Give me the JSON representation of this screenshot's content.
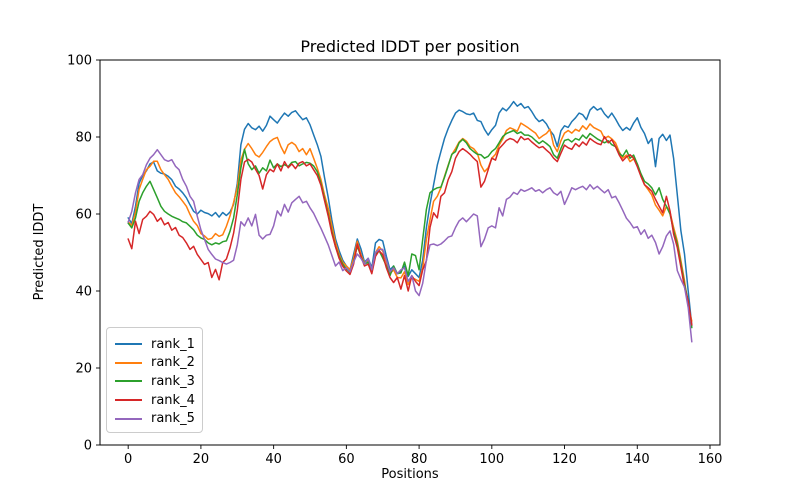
{
  "chart_data": {
    "type": "line",
    "title": "Predicted lDDT per position",
    "xlabel": "Positions",
    "ylabel": "Predicted lDDT",
    "xlim": [
      -7.75,
      162.75
    ],
    "ylim": [
      0,
      100
    ],
    "xticks": [
      0,
      20,
      40,
      60,
      80,
      100,
      120,
      140,
      160
    ],
    "yticks": [
      0,
      20,
      40,
      60,
      80,
      100
    ],
    "x_start": 0,
    "x_step": 1,
    "grid": false,
    "legend_position": "lower left",
    "axis_color": "#000000",
    "background_color": "#ffffff",
    "series": [
      {
        "name": "rank_1",
        "color": "#1f77b4",
        "values": [
          59.0,
          57.5,
          62.0,
          68.0,
          70.0,
          71.2,
          73.0,
          73.5,
          71.2,
          70.6,
          70.4,
          69.8,
          68.9,
          67.2,
          66.5,
          65.5,
          64.2,
          62.4,
          60.7,
          60.0,
          61.0,
          60.4,
          60.1,
          59.5,
          60.4,
          59.2,
          60.4,
          59.6,
          60.5,
          62.5,
          68.0,
          78.0,
          82.0,
          83.5,
          82.4,
          81.9,
          82.8,
          81.5,
          83.0,
          85.4,
          84.5,
          83.6,
          85.0,
          86.2,
          85.4,
          86.4,
          86.8,
          85.6,
          84.5,
          85.0,
          83.2,
          80.6,
          78.0,
          75.0,
          69.5,
          64.3,
          58.5,
          53.5,
          50.5,
          48.0,
          46.5,
          45.5,
          49.5,
          53.5,
          51.0,
          47.5,
          48.5,
          46.0,
          52.5,
          53.4,
          53.0,
          49.0,
          45.5,
          46.5,
          44.5,
          45.0,
          46.5,
          43.8,
          45.5,
          44.5,
          43.5,
          48.0,
          56.5,
          62.5,
          67.6,
          72.7,
          76.2,
          79.6,
          82.2,
          84.3,
          86.2,
          87.0,
          86.6,
          86.0,
          85.8,
          86.2,
          84.3,
          84.0,
          82.0,
          80.5,
          81.9,
          83.0,
          86.2,
          87.5,
          86.8,
          87.9,
          89.2,
          88.0,
          88.7,
          87.5,
          87.9,
          86.6,
          85.0,
          84.0,
          84.5,
          83.4,
          81.7,
          80.5,
          77.5,
          81.6,
          82.9,
          82.5,
          84.0,
          85.0,
          86.2,
          85.8,
          84.5,
          87.0,
          87.9,
          87.0,
          87.5,
          86.0,
          85.0,
          86.2,
          84.7,
          83.0,
          81.7,
          82.5,
          81.8,
          83.6,
          85.0,
          82.5,
          80.9,
          78.3,
          79.6,
          72.3,
          79.6,
          80.7,
          79.1,
          80.5,
          74.5,
          65.0,
          55.6,
          49.6,
          40.0,
          31.0
        ]
      },
      {
        "name": "rank_2",
        "color": "#ff7f0e",
        "values": [
          58.0,
          57.0,
          60.5,
          66.4,
          69.0,
          71.5,
          72.4,
          73.7,
          73.7,
          71.5,
          70.2,
          69.0,
          67.2,
          65.5,
          64.5,
          63.3,
          62.0,
          59.9,
          58.1,
          57.0,
          54.9,
          54.3,
          53.4,
          53.7,
          54.9,
          54.2,
          54.6,
          56.8,
          59.5,
          63.0,
          67.0,
          74.0,
          76.8,
          78.3,
          77.0,
          75.4,
          74.8,
          76.0,
          77.5,
          78.8,
          79.5,
          79.9,
          77.5,
          75.7,
          78.0,
          78.6,
          77.9,
          76.2,
          77.0,
          75.4,
          77.0,
          74.5,
          71.9,
          69.0,
          65.0,
          61.5,
          57.0,
          52.5,
          49.5,
          47.5,
          46.5,
          45.5,
          48.5,
          52.9,
          49.5,
          47.3,
          47.8,
          45.5,
          50.0,
          51.5,
          50.4,
          47.5,
          44.5,
          45.5,
          43.5,
          43.4,
          45.0,
          41.7,
          43.5,
          43.0,
          42.5,
          46.0,
          53.4,
          58.5,
          63.3,
          64.6,
          66.8,
          69.8,
          72.7,
          75.4,
          77.0,
          78.7,
          79.6,
          78.9,
          77.5,
          77.0,
          75.8,
          72.7,
          71.0,
          72.0,
          74.5,
          75.5,
          77.9,
          79.5,
          81.7,
          82.4,
          82.0,
          81.5,
          83.6,
          83.0,
          82.4,
          81.7,
          81.0,
          79.6,
          80.3,
          80.9,
          82.0,
          77.9,
          76.2,
          79.0,
          81.0,
          81.7,
          81.0,
          82.0,
          81.5,
          82.9,
          82.0,
          83.4,
          82.5,
          82.0,
          81.5,
          79.6,
          80.2,
          79.5,
          78.5,
          76.2,
          74.5,
          75.3,
          73.6,
          74.3,
          73.0,
          70.2,
          67.6,
          66.3,
          64.9,
          62.3,
          61.0,
          59.5,
          62.0,
          60.5,
          56.5,
          53.0,
          47.9,
          42.7,
          36.0,
          32.2
        ]
      },
      {
        "name": "rank_3",
        "color": "#2ca02c",
        "values": [
          57.6,
          56.4,
          59.0,
          63.3,
          65.5,
          67.2,
          68.5,
          66.4,
          64.2,
          62.0,
          60.7,
          60.0,
          59.4,
          59.0,
          58.6,
          58.0,
          57.7,
          56.8,
          55.9,
          54.5,
          53.8,
          53.4,
          52.5,
          52.0,
          52.5,
          52.2,
          52.8,
          53.0,
          55.5,
          59.0,
          65.0,
          72.0,
          76.8,
          73.0,
          71.5,
          72.5,
          70.6,
          72.0,
          71.2,
          74.0,
          72.0,
          73.0,
          72.3,
          72.8,
          72.3,
          73.4,
          73.6,
          72.5,
          73.0,
          73.4,
          73.2,
          72.5,
          71.0,
          68.0,
          64.0,
          60.0,
          55.5,
          51.5,
          49.0,
          47.0,
          45.8,
          44.8,
          47.5,
          51.7,
          49.0,
          47.0,
          47.5,
          45.0,
          49.5,
          50.5,
          48.6,
          46.5,
          44.0,
          46.5,
          44.5,
          44.7,
          47.5,
          44.0,
          49.6,
          49.2,
          45.5,
          53.4,
          61.2,
          65.5,
          66.3,
          66.8,
          67.0,
          69.5,
          72.5,
          75.5,
          76.2,
          78.5,
          79.4,
          78.5,
          77.0,
          76.2,
          75.5,
          75.4,
          74.5,
          75.0,
          76.2,
          77.0,
          78.5,
          80.1,
          80.9,
          81.3,
          81.7,
          80.9,
          81.3,
          80.5,
          80.5,
          80.0,
          79.1,
          78.3,
          79.0,
          78.3,
          77.5,
          75.4,
          74.5,
          77.0,
          79.1,
          79.4,
          78.7,
          79.6,
          79.2,
          80.5,
          79.6,
          80.9,
          80.2,
          79.5,
          79.0,
          78.5,
          79.0,
          78.0,
          77.5,
          75.8,
          75.0,
          76.6,
          74.5,
          75.3,
          73.0,
          70.5,
          68.5,
          67.8,
          66.8,
          65.0,
          66.8,
          63.8,
          62.0,
          60.0,
          55.6,
          52.2,
          47.0,
          41.8,
          37.4,
          30.5
        ]
      },
      {
        "name": "rank_4",
        "color": "#d62728",
        "values": [
          53.5,
          51.0,
          58.1,
          54.9,
          58.6,
          59.4,
          60.7,
          59.9,
          58.1,
          59.0,
          57.2,
          57.8,
          55.8,
          56.5,
          54.5,
          53.9,
          52.5,
          50.8,
          51.6,
          49.5,
          48.2,
          46.9,
          47.4,
          43.5,
          45.6,
          42.9,
          47.4,
          48.3,
          51.2,
          55.0,
          61.0,
          69.0,
          73.5,
          74.2,
          73.5,
          71.6,
          70.0,
          66.5,
          70.2,
          71.6,
          71.0,
          73.0,
          71.2,
          73.6,
          72.0,
          73.0,
          71.8,
          73.2,
          73.6,
          72.5,
          73.0,
          71.5,
          70.0,
          67.5,
          63.5,
          59.5,
          55.0,
          51.5,
          48.5,
          46.5,
          45.2,
          44.3,
          47.0,
          52.2,
          49.0,
          46.5,
          47.0,
          44.5,
          49.0,
          50.5,
          49.4,
          46.0,
          43.5,
          42.2,
          43.5,
          40.5,
          44.0,
          40.0,
          44.0,
          42.5,
          41.4,
          45.5,
          47.9,
          56.5,
          60.3,
          59.0,
          64.6,
          65.5,
          68.9,
          71.0,
          74.5,
          76.2,
          77.0,
          76.3,
          75.5,
          74.5,
          73.6,
          67.0,
          68.5,
          71.5,
          74.5,
          74.0,
          77.0,
          78.0,
          79.1,
          79.6,
          79.3,
          78.5,
          80.1,
          79.3,
          79.6,
          78.7,
          77.9,
          77.2,
          77.5,
          76.6,
          75.8,
          74.5,
          73.6,
          75.8,
          77.9,
          77.2,
          76.8,
          78.3,
          77.5,
          78.7,
          77.9,
          79.6,
          78.9,
          78.3,
          78.0,
          80.1,
          78.5,
          79.3,
          77.5,
          75.4,
          73.8,
          74.8,
          75.4,
          74.5,
          72.3,
          69.8,
          67.6,
          66.8,
          65.9,
          63.8,
          62.0,
          60.3,
          64.6,
          60.8,
          54.8,
          51.3,
          46.2,
          41.0,
          37.4,
          31.2
        ]
      },
      {
        "name": "rank_5",
        "color": "#9467bd",
        "values": [
          57.9,
          60.7,
          65.5,
          69.0,
          70.2,
          72.8,
          74.5,
          75.4,
          76.7,
          75.4,
          74.1,
          73.7,
          74.1,
          72.4,
          71.5,
          69.0,
          67.2,
          64.6,
          63.3,
          59.4,
          55.9,
          53.4,
          50.8,
          49.5,
          48.3,
          47.9,
          47.4,
          47.0,
          47.4,
          48.0,
          52.0,
          58.0,
          56.9,
          59.0,
          56.9,
          59.9,
          54.5,
          53.5,
          54.5,
          54.7,
          56.9,
          60.8,
          59.5,
          62.5,
          60.5,
          62.9,
          63.8,
          64.6,
          62.9,
          63.3,
          61.6,
          60.2,
          58.2,
          56.3,
          54.2,
          52.0,
          49.3,
          46.5,
          47.5,
          45.3,
          46.0,
          45.0,
          47.5,
          49.6,
          48.5,
          47.0,
          48.5,
          45.5,
          50.0,
          50.8,
          50.8,
          48.0,
          45.0,
          46.0,
          44.5,
          45.5,
          46.0,
          42.5,
          44.0,
          40.0,
          38.8,
          42.0,
          48.0,
          52.0,
          52.2,
          51.8,
          52.2,
          53.0,
          54.0,
          54.3,
          56.5,
          58.2,
          59.0,
          58.0,
          59.0,
          60.0,
          59.5,
          51.5,
          53.5,
          56.4,
          56.9,
          56.4,
          61.6,
          59.5,
          63.8,
          64.4,
          65.6,
          65.1,
          66.4,
          65.9,
          66.3,
          66.8,
          65.9,
          66.3,
          65.5,
          66.3,
          66.8,
          65.5,
          64.9,
          65.9,
          62.5,
          64.6,
          66.8,
          66.3,
          66.8,
          67.2,
          66.3,
          67.6,
          66.5,
          67.2,
          66.3,
          65.5,
          66.3,
          64.2,
          64.6,
          62.9,
          61.0,
          58.9,
          57.8,
          56.4,
          56.7,
          54.7,
          55.9,
          53.7,
          54.5,
          52.6,
          49.6,
          51.5,
          54.3,
          55.6,
          52.2,
          45.3,
          43.0,
          41.0,
          35.7,
          26.8
        ]
      }
    ]
  }
}
